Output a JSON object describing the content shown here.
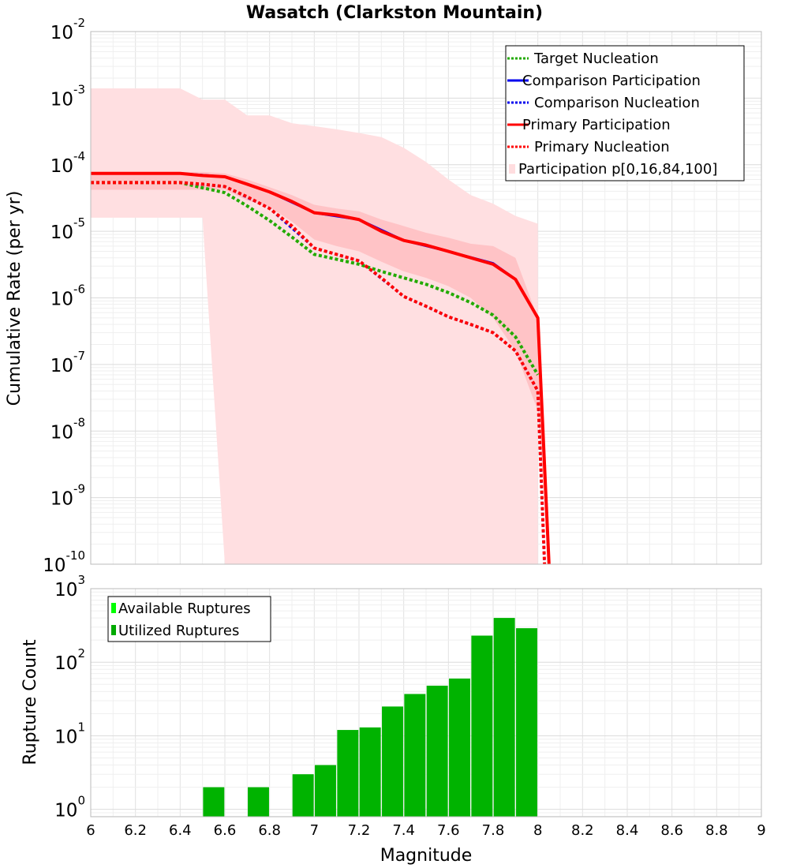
{
  "chart_data": [
    {
      "type": "line",
      "title": "Wasatch (Clarkston Mountain)",
      "xlabel": "Magnitude",
      "ylabel": "Cumulative Rate (per yr)",
      "xlim": [
        6,
        9
      ],
      "ylim_log10": [
        -10,
        -2
      ],
      "yscale": "log",
      "grid": true,
      "legend_position": "top-right",
      "ytick_bases": [
        "10",
        "10",
        "10",
        "10",
        "10",
        "10",
        "10",
        "10",
        "10"
      ],
      "ytick_exponents": [
        "-10",
        "-9",
        "-8",
        "-7",
        "-6",
        "-5",
        "-4",
        "-3",
        "-2"
      ],
      "legend": [
        {
          "label": "Target Nucleation",
          "style": "dotted",
          "color": "#22aa00"
        },
        {
          "label": "Comparison Participation",
          "style": "solid",
          "color": "#0000ee"
        },
        {
          "label": "Comparison Nucleation",
          "style": "dotted",
          "color": "#0000ee"
        },
        {
          "label": "Primary Participation",
          "style": "solid",
          "color": "#ff0000"
        },
        {
          "label": "Primary Nucleation",
          "style": "dotted",
          "color": "#ff0000"
        },
        {
          "label": "Participation p[0,16,84,100]",
          "style": "box",
          "color": "#ffdddf"
        }
      ],
      "series": [
        {
          "name": "Primary Participation",
          "x": [
            6.0,
            6.1,
            6.2,
            6.3,
            6.4,
            6.5,
            6.6,
            6.7,
            6.8,
            6.9,
            7.0,
            7.1,
            7.2,
            7.3,
            7.4,
            7.5,
            7.6,
            7.7,
            7.8,
            7.9,
            8.0,
            8.05
          ],
          "y": [
            7.4e-05,
            7.4e-05,
            7.4e-05,
            7.4e-05,
            7.4e-05,
            6.9e-05,
            6.6e-05,
            5.1e-05,
            3.9e-05,
            2.8e-05,
            1.9e-05,
            1.75e-05,
            1.5e-05,
            1e-05,
            7.3e-06,
            6.2e-06,
            5e-06,
            4e-06,
            3.2e-06,
            1.9e-06,
            5e-07,
            1e-10
          ]
        },
        {
          "name": "Comparison Participation",
          "x": [
            6.0,
            6.4,
            6.6,
            6.8,
            7.0,
            7.2,
            7.4,
            7.6,
            7.8,
            7.9,
            8.0,
            8.05
          ],
          "y": [
            7.4e-05,
            7.4e-05,
            6.6e-05,
            3.9e-05,
            1.9e-05,
            1.5e-05,
            7.3e-06,
            5e-06,
            3.3e-06,
            1.9e-06,
            5e-07,
            1e-10
          ]
        },
        {
          "name": "Target Nucleation",
          "x": [
            6.0,
            6.4,
            6.5,
            6.6,
            6.7,
            6.8,
            6.9,
            7.0,
            7.1,
            7.2,
            7.3,
            7.4,
            7.5,
            7.6,
            7.7,
            7.8,
            7.9,
            8.0
          ],
          "y": [
            5.4e-05,
            5.4e-05,
            4.5e-05,
            3.8e-05,
            2.4e-05,
            1.45e-05,
            8.2e-06,
            4.5e-06,
            3.8e-06,
            3.2e-06,
            2.5e-06,
            2e-06,
            1.6e-06,
            1.2e-06,
            8.5e-07,
            5.5e-07,
            2.6e-07,
            7e-08
          ]
        },
        {
          "name": "Comparison Nucleation",
          "x": [
            6.0,
            6.4,
            6.6,
            6.8,
            7.0,
            7.2,
            7.4,
            7.6,
            7.8,
            7.9,
            8.0,
            8.03
          ],
          "y": [
            5.4e-05,
            5.4e-05,
            4.7e-05,
            2.2e-05,
            5.6e-06,
            3.6e-06,
            1.05e-06,
            5.2e-07,
            3e-07,
            1.6e-07,
            4e-08,
            1e-10
          ]
        },
        {
          "name": "Primary Nucleation",
          "x": [
            6.0,
            6.4,
            6.5,
            6.6,
            6.7,
            6.8,
            6.9,
            7.0,
            7.1,
            7.2,
            7.3,
            7.4,
            7.5,
            7.6,
            7.7,
            7.8,
            7.9,
            8.0,
            8.03
          ],
          "y": [
            5.4e-05,
            5.4e-05,
            5.1e-05,
            4.7e-05,
            3.3e-05,
            2.2e-05,
            1.2e-05,
            5.6e-06,
            4.5e-06,
            3.6e-06,
            2e-06,
            1.05e-06,
            7.5e-07,
            5.2e-07,
            4e-07,
            3e-07,
            1.6e-07,
            4e-08,
            1e-10
          ]
        }
      ],
      "bands": [
        {
          "name": "p0-p100",
          "x": [
            6.0,
            6.4,
            6.5,
            6.6,
            6.7,
            6.8,
            6.9,
            7.0,
            7.1,
            7.2,
            7.3,
            7.4,
            7.5,
            7.6,
            7.7,
            7.8,
            7.9,
            8.0
          ],
          "lower": [
            1.6e-05,
            1.6e-05,
            1.6e-05,
            1e-10,
            1e-10,
            1e-10,
            1e-10,
            1e-10,
            1e-10,
            1e-10,
            1e-10,
            1e-10,
            1e-10,
            1e-10,
            1e-10,
            1e-10,
            1e-10,
            1e-10
          ],
          "upper": [
            0.0014,
            0.0014,
            0.00095,
            0.00095,
            0.00055,
            0.00055,
            0.00042,
            0.00038,
            0.00034,
            0.0003,
            0.00026,
            0.00018,
            0.00011,
            6e-05,
            3.5e-05,
            2.6e-05,
            1.7e-05,
            1.3e-05
          ]
        },
        {
          "name": "p16-p84",
          "x": [
            6.0,
            6.4,
            6.5,
            6.6,
            6.7,
            6.8,
            6.9,
            7.0,
            7.1,
            7.2,
            7.3,
            7.4,
            7.5,
            7.6,
            7.7,
            7.8,
            7.9,
            8.0,
            8.05
          ],
          "lower": [
            4.2e-05,
            4.2e-05,
            4.2e-05,
            4.2e-05,
            2.9e-05,
            2.3e-05,
            1.4e-05,
            7.5e-06,
            6e-06,
            5e-06,
            3.5e-06,
            2.5e-06,
            2e-06,
            1.5e-06,
            1e-06,
            5e-07,
            1.6e-07,
            2e-08,
            1e-10
          ],
          "upper": [
            7.8e-05,
            7.8e-05,
            7.8e-05,
            7.4e-05,
            6e-05,
            4.6e-05,
            3.5e-05,
            2.5e-05,
            2.2e-05,
            2e-05,
            1.5e-05,
            1.2e-05,
            9.5e-06,
            8e-06,
            6.5e-06,
            6e-06,
            4e-06,
            5e-07,
            1e-10
          ]
        }
      ]
    },
    {
      "type": "bar",
      "xlabel": "Magnitude",
      "ylabel": "Rupture Count",
      "yscale": "log",
      "ylim_log10": [
        -0.1,
        3
      ],
      "xlim": [
        6,
        9
      ],
      "xticks": [
        "6",
        "6.2",
        "6.4",
        "6.6",
        "6.8",
        "7",
        "7.2",
        "7.4",
        "7.6",
        "7.8",
        "8",
        "8.2",
        "8.4",
        "8.6",
        "8.8",
        "9"
      ],
      "ytick_bases": [
        "10",
        "10",
        "10",
        "10"
      ],
      "ytick_exponents": [
        "0",
        "1",
        "2",
        "3"
      ],
      "legend_position": "top-left",
      "legend": [
        {
          "label": "Available Ruptures",
          "color": "#00ff00"
        },
        {
          "label": "Utilized Ruptures",
          "color": "#00aa00"
        }
      ],
      "bar_color": "#00b300",
      "bar_width": 0.095,
      "x": [
        6.55,
        6.75,
        6.95,
        7.05,
        7.15,
        7.25,
        7.35,
        7.45,
        7.55,
        7.65,
        7.75,
        7.85,
        7.95
      ],
      "values": [
        2,
        2,
        3,
        4,
        12,
        13,
        25,
        37,
        48,
        60,
        230,
        400,
        290
      ]
    }
  ]
}
